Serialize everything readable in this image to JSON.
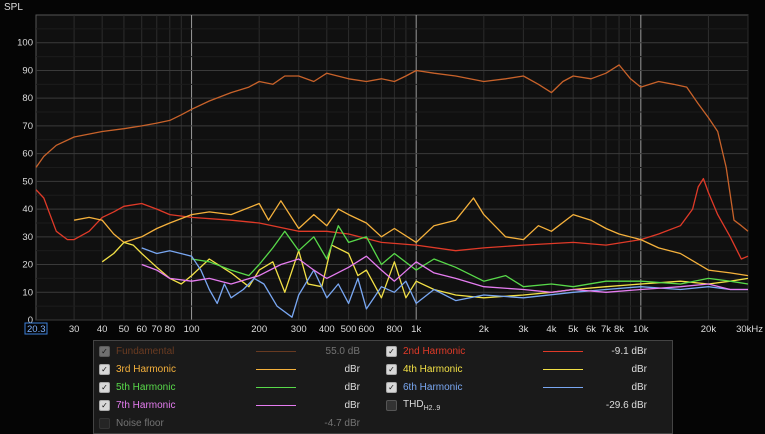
{
  "y_axis_title": "SPL",
  "x_ticks": [
    {
      "f": 20.3,
      "label": "20.3"
    },
    {
      "f": 30,
      "label": "30"
    },
    {
      "f": 40,
      "label": "40"
    },
    {
      "f": 50,
      "label": "50"
    },
    {
      "f": 60,
      "label": "60"
    },
    {
      "f": 70,
      "label": "70"
    },
    {
      "f": 80,
      "label": "80"
    },
    {
      "f": 100,
      "label": "100"
    },
    {
      "f": 200,
      "label": "200"
    },
    {
      "f": 300,
      "label": "300"
    },
    {
      "f": 400,
      "label": "400"
    },
    {
      "f": 500,
      "label": "500"
    },
    {
      "f": 600,
      "label": "600"
    },
    {
      "f": 800,
      "label": "800"
    },
    {
      "f": 1000,
      "label": "1k"
    },
    {
      "f": 2000,
      "label": "2k"
    },
    {
      "f": 3000,
      "label": "3k"
    },
    {
      "f": 4000,
      "label": "4k"
    },
    {
      "f": 5000,
      "label": "5k"
    },
    {
      "f": 6000,
      "label": "6k"
    },
    {
      "f": 7000,
      "label": "7k"
    },
    {
      "f": 8000,
      "label": "8k"
    },
    {
      "f": 10000,
      "label": "10k"
    },
    {
      "f": 20000,
      "label": "20k"
    },
    {
      "f": 30000,
      "label": "30kHz"
    }
  ],
  "legend": {
    "items": [
      {
        "key": "fund",
        "name": "Fundamental",
        "value": "55.0 dB",
        "checked": true,
        "dim": true,
        "color": "#c8622a"
      },
      {
        "key": "h2",
        "name": "2nd Harmonic",
        "value": "-9.1 dBr",
        "checked": true,
        "dim": false,
        "color": "#e03a28"
      },
      {
        "key": "h3",
        "name": "3rd Harmonic",
        "value": "dBr",
        "checked": true,
        "dim": false,
        "color": "#f5b13c"
      },
      {
        "key": "h4",
        "name": "4th Harmonic",
        "value": "dBr",
        "checked": true,
        "dim": false,
        "color": "#f2e046"
      },
      {
        "key": "h5",
        "name": "5th Harmonic",
        "value": "dBr",
        "checked": true,
        "dim": false,
        "color": "#58d94a"
      },
      {
        "key": "h6",
        "name": "6th Harmonic",
        "value": "dBr",
        "checked": true,
        "dim": false,
        "color": "#79a7f2"
      },
      {
        "key": "h7",
        "name": "7th Harmonic",
        "value": "dBr",
        "checked": true,
        "dim": false,
        "color": "#e57cf0"
      },
      {
        "key": "thd",
        "name": "THD",
        "sub": "H2..9",
        "value": "-29.6 dBr",
        "checked": false,
        "dim": false,
        "color": ""
      },
      {
        "key": "noise",
        "name": "Noise floor",
        "value": "-4.7 dBr",
        "checked": false,
        "dim": true,
        "color": ""
      }
    ]
  },
  "chart_data": {
    "type": "line",
    "title": "",
    "xlabel": "",
    "ylabel": "SPL",
    "x_scale": "log",
    "xlim": [
      20.3,
      30000
    ],
    "ylim": [
      0,
      110
    ],
    "y_ticks": [
      0,
      10,
      20,
      30,
      40,
      50,
      60,
      70,
      80,
      90,
      100
    ],
    "grid": true,
    "series": [
      {
        "name": "Fundamental",
        "color": "#c8622a",
        "points": [
          [
            20.3,
            55
          ],
          [
            22,
            59
          ],
          [
            25,
            63
          ],
          [
            30,
            66
          ],
          [
            40,
            68
          ],
          [
            50,
            69
          ],
          [
            60,
            70
          ],
          [
            70,
            71
          ],
          [
            80,
            72
          ],
          [
            90,
            74
          ],
          [
            100,
            76
          ],
          [
            120,
            79
          ],
          [
            150,
            82
          ],
          [
            180,
            84
          ],
          [
            200,
            86
          ],
          [
            230,
            85
          ],
          [
            260,
            88
          ],
          [
            300,
            88
          ],
          [
            350,
            86
          ],
          [
            400,
            89
          ],
          [
            500,
            87
          ],
          [
            600,
            86
          ],
          [
            700,
            87
          ],
          [
            800,
            86
          ],
          [
            900,
            88
          ],
          [
            1000,
            90
          ],
          [
            1200,
            89
          ],
          [
            1500,
            88
          ],
          [
            2000,
            86
          ],
          [
            2500,
            87
          ],
          [
            3000,
            88
          ],
          [
            3500,
            85
          ],
          [
            4000,
            82
          ],
          [
            4500,
            86
          ],
          [
            5000,
            88
          ],
          [
            6000,
            87
          ],
          [
            7000,
            89
          ],
          [
            8000,
            92
          ],
          [
            9000,
            87
          ],
          [
            10000,
            84
          ],
          [
            12000,
            86
          ],
          [
            14000,
            85
          ],
          [
            16000,
            84
          ],
          [
            18000,
            78
          ],
          [
            20000,
            73
          ],
          [
            22000,
            68
          ],
          [
            24000,
            55
          ],
          [
            26000,
            36
          ],
          [
            28000,
            34
          ],
          [
            30000,
            32
          ]
        ]
      },
      {
        "name": "2nd Harmonic",
        "color": "#e03a28",
        "points": [
          [
            20.3,
            47
          ],
          [
            22,
            44
          ],
          [
            25,
            32
          ],
          [
            28,
            29
          ],
          [
            30,
            29
          ],
          [
            35,
            32
          ],
          [
            40,
            37
          ],
          [
            45,
            39
          ],
          [
            50,
            41
          ],
          [
            60,
            42
          ],
          [
            70,
            40
          ],
          [
            80,
            38
          ],
          [
            100,
            37
          ],
          [
            150,
            36
          ],
          [
            200,
            35
          ],
          [
            300,
            32
          ],
          [
            400,
            32
          ],
          [
            500,
            31
          ],
          [
            700,
            28
          ],
          [
            1000,
            27
          ],
          [
            1500,
            25
          ],
          [
            2000,
            26
          ],
          [
            3000,
            27
          ],
          [
            5000,
            28
          ],
          [
            7000,
            27
          ],
          [
            10000,
            29
          ],
          [
            12000,
            31
          ],
          [
            15000,
            34
          ],
          [
            17000,
            40
          ],
          [
            18000,
            48
          ],
          [
            19000,
            51
          ],
          [
            20000,
            46
          ],
          [
            22000,
            38
          ],
          [
            25000,
            30
          ],
          [
            28000,
            22
          ],
          [
            30000,
            23
          ]
        ]
      },
      {
        "name": "3rd Harmonic",
        "color": "#f5b13c",
        "points": [
          [
            30,
            36
          ],
          [
            35,
            37
          ],
          [
            40,
            36
          ],
          [
            45,
            31
          ],
          [
            50,
            28
          ],
          [
            60,
            30
          ],
          [
            70,
            33
          ],
          [
            80,
            35
          ],
          [
            100,
            38
          ],
          [
            120,
            39
          ],
          [
            150,
            38
          ],
          [
            200,
            42
          ],
          [
            220,
            36
          ],
          [
            250,
            43
          ],
          [
            300,
            33
          ],
          [
            350,
            38
          ],
          [
            400,
            34
          ],
          [
            450,
            40
          ],
          [
            500,
            38
          ],
          [
            600,
            35
          ],
          [
            700,
            30
          ],
          [
            800,
            33
          ],
          [
            1000,
            28
          ],
          [
            1200,
            34
          ],
          [
            1500,
            36
          ],
          [
            1800,
            44
          ],
          [
            2000,
            38
          ],
          [
            2500,
            30
          ],
          [
            3000,
            29
          ],
          [
            3500,
            34
          ],
          [
            4000,
            32
          ],
          [
            5000,
            38
          ],
          [
            6000,
            36
          ],
          [
            7000,
            33
          ],
          [
            8000,
            31
          ],
          [
            10000,
            29
          ],
          [
            12000,
            26
          ],
          [
            15000,
            24
          ],
          [
            20000,
            18
          ],
          [
            25000,
            17
          ],
          [
            30000,
            16
          ]
        ]
      },
      {
        "name": "4th Harmonic",
        "color": "#f2e046",
        "points": [
          [
            40,
            21
          ],
          [
            45,
            24
          ],
          [
            50,
            28
          ],
          [
            55,
            27
          ],
          [
            60,
            24
          ],
          [
            70,
            19
          ],
          [
            80,
            15
          ],
          [
            90,
            13
          ],
          [
            100,
            16
          ],
          [
            120,
            22
          ],
          [
            150,
            17
          ],
          [
            180,
            12
          ],
          [
            200,
            18
          ],
          [
            230,
            21
          ],
          [
            260,
            10
          ],
          [
            300,
            25
          ],
          [
            330,
            13
          ],
          [
            380,
            12
          ],
          [
            420,
            27
          ],
          [
            500,
            24
          ],
          [
            550,
            16
          ],
          [
            600,
            18
          ],
          [
            700,
            8
          ],
          [
            800,
            21
          ],
          [
            900,
            8
          ],
          [
            1000,
            14
          ],
          [
            1200,
            11
          ],
          [
            1500,
            9
          ],
          [
            2000,
            8
          ],
          [
            3000,
            9
          ],
          [
            4000,
            10
          ],
          [
            5000,
            11
          ],
          [
            7000,
            12
          ],
          [
            10000,
            13
          ],
          [
            15000,
            14
          ],
          [
            20000,
            13
          ],
          [
            25000,
            14
          ],
          [
            30000,
            15
          ]
        ]
      },
      {
        "name": "5th Harmonic",
        "color": "#58d94a",
        "points": [
          [
            100,
            22
          ],
          [
            120,
            21
          ],
          [
            150,
            18
          ],
          [
            180,
            16
          ],
          [
            200,
            20
          ],
          [
            230,
            26
          ],
          [
            260,
            32
          ],
          [
            300,
            25
          ],
          [
            350,
            30
          ],
          [
            400,
            22
          ],
          [
            450,
            34
          ],
          [
            500,
            28
          ],
          [
            600,
            30
          ],
          [
            700,
            20
          ],
          [
            800,
            24
          ],
          [
            1000,
            18
          ],
          [
            1200,
            22
          ],
          [
            1500,
            19
          ],
          [
            2000,
            14
          ],
          [
            2500,
            16
          ],
          [
            3000,
            12
          ],
          [
            4000,
            13
          ],
          [
            5000,
            12
          ],
          [
            7000,
            14
          ],
          [
            10000,
            14
          ],
          [
            15000,
            13
          ],
          [
            20000,
            15
          ],
          [
            25000,
            14
          ],
          [
            30000,
            13
          ]
        ]
      },
      {
        "name": "6th Harmonic",
        "color": "#79a7f2",
        "points": [
          [
            60,
            26
          ],
          [
            70,
            24
          ],
          [
            80,
            25
          ],
          [
            100,
            23
          ],
          [
            110,
            18
          ],
          [
            120,
            11
          ],
          [
            130,
            6
          ],
          [
            140,
            13
          ],
          [
            150,
            8
          ],
          [
            170,
            11
          ],
          [
            190,
            15
          ],
          [
            210,
            13
          ],
          [
            240,
            5
          ],
          [
            280,
            1
          ],
          [
            300,
            9
          ],
          [
            350,
            18
          ],
          [
            400,
            8
          ],
          [
            450,
            13
          ],
          [
            500,
            6
          ],
          [
            550,
            15
          ],
          [
            600,
            4
          ],
          [
            700,
            12
          ],
          [
            800,
            10
          ],
          [
            900,
            14
          ],
          [
            1000,
            6
          ],
          [
            1200,
            11
          ],
          [
            1500,
            7
          ],
          [
            2000,
            9
          ],
          [
            3000,
            8
          ],
          [
            5000,
            10
          ],
          [
            7000,
            11
          ],
          [
            10000,
            12
          ],
          [
            15000,
            11
          ],
          [
            20000,
            12
          ],
          [
            25000,
            11
          ],
          [
            30000,
            11
          ]
        ]
      },
      {
        "name": "7th Harmonic",
        "color": "#e57cf0",
        "points": [
          [
            60,
            20
          ],
          [
            70,
            18
          ],
          [
            80,
            15
          ],
          [
            100,
            14
          ],
          [
            120,
            15
          ],
          [
            150,
            13
          ],
          [
            200,
            16
          ],
          [
            250,
            20
          ],
          [
            300,
            22
          ],
          [
            350,
            18
          ],
          [
            400,
            15
          ],
          [
            500,
            19
          ],
          [
            600,
            23
          ],
          [
            700,
            18
          ],
          [
            800,
            14
          ],
          [
            1000,
            21
          ],
          [
            1200,
            17
          ],
          [
            1500,
            15
          ],
          [
            2000,
            12
          ],
          [
            3000,
            11
          ],
          [
            4000,
            10
          ],
          [
            5000,
            11
          ],
          [
            7000,
            10
          ],
          [
            10000,
            11
          ],
          [
            15000,
            12
          ],
          [
            20000,
            13
          ],
          [
            25000,
            11
          ],
          [
            30000,
            11
          ]
        ]
      }
    ]
  }
}
